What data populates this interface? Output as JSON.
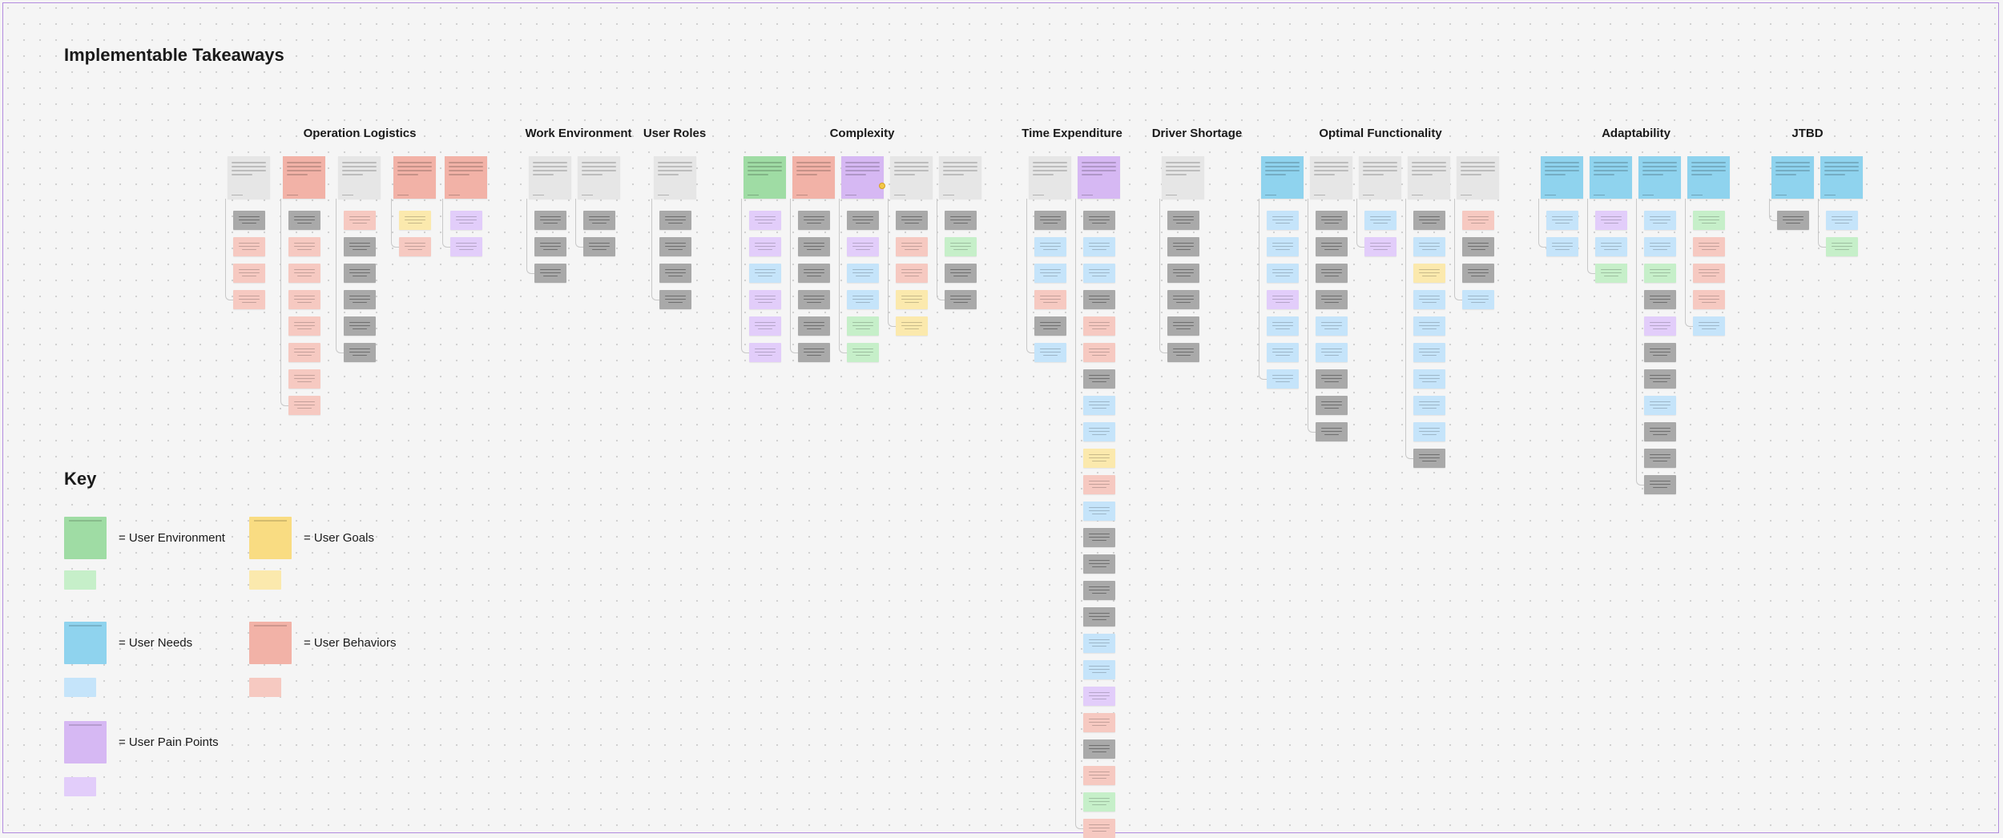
{
  "page": {
    "title": "Implementable Takeaways"
  },
  "categories": [
    {
      "label": "Operation Logistics",
      "x": 449
    },
    {
      "label": "Work Environment",
      "x": 722
    },
    {
      "label": "User Roles",
      "x": 842
    },
    {
      "label": "Complexity",
      "x": 1076
    },
    {
      "label": "Time Expenditure",
      "x": 1338
    },
    {
      "label": "Driver Shortage",
      "x": 1494
    },
    {
      "label": "Optimal Functionality",
      "x": 1723
    },
    {
      "label": "Adaptability",
      "x": 2042
    },
    {
      "label": "JTBD",
      "x": 2256
    }
  ],
  "key": {
    "title": "Key",
    "items": [
      {
        "label": "= User Environment",
        "color": "#9fdca4",
        "light": "#c6efc9"
      },
      {
        "label": "= User Goals",
        "color": "#f9dc82",
        "light": "#fbe9ad"
      },
      {
        "label": "= User Needs",
        "color": "#8fd3ee",
        "light": "#c5e4fa"
      },
      {
        "label": "= User Behaviors",
        "color": "#f2b2a7",
        "light": "#f6c9c1"
      },
      {
        "label": "= User Pain Points",
        "color": "#d6b8f3",
        "light": "#e2cdfa"
      }
    ]
  },
  "colors": {
    "grey": "#e6e6e6",
    "dark": "#a9a9a9",
    "red": "#f2b2a7",
    "redLight": "#f6c9c1",
    "green": "#9fdca4",
    "greenLight": "#c6efc9",
    "blue": "#8fd3ee",
    "blueLight": "#c5e4fa",
    "purple": "#d6b8f3",
    "purpleLight": "#e2cdfa",
    "yellow": "#f9dc82",
    "yellowLight": "#fbe9ad",
    "frame": "#b28adf"
  },
  "notes": [
    {
      "x": 284,
      "c": "grey",
      "cards": [
        "dark",
        "red",
        "red",
        "red"
      ]
    },
    {
      "x": 353,
      "c": "red",
      "cards": [
        "dark",
        "red",
        "red",
        "red",
        "red",
        "red",
        "red",
        "red"
      ]
    },
    {
      "x": 422,
      "c": "grey",
      "cards": [
        "red",
        "dark",
        "dark",
        "dark",
        "dark",
        "dark"
      ]
    },
    {
      "x": 491,
      "c": "red",
      "cards": [
        "yellow",
        "red"
      ]
    },
    {
      "x": 555,
      "c": "red",
      "cards": [
        "purple",
        "purple"
      ]
    },
    {
      "x": 660,
      "c": "grey",
      "cards": [
        "dark",
        "dark",
        "dark"
      ]
    },
    {
      "x": 721,
      "c": "grey",
      "cards": [
        "dark",
        "dark"
      ]
    },
    {
      "x": 816,
      "c": "grey",
      "cards": [
        "dark",
        "dark",
        "dark",
        "dark"
      ]
    },
    {
      "x": 928,
      "c": "green",
      "cards": [
        "purple",
        "purple",
        "blue",
        "purple",
        "purple",
        "purple"
      ]
    },
    {
      "x": 989,
      "c": "red",
      "cards": [
        "dark",
        "dark",
        "dark",
        "dark",
        "dark",
        "dark"
      ]
    },
    {
      "x": 1050,
      "c": "purple",
      "cards": [
        "dark",
        "purple",
        "blue",
        "blue",
        "green",
        "green"
      ]
    },
    {
      "x": 1111,
      "c": "grey",
      "cards": [
        "dark",
        "red",
        "red",
        "yellow",
        "yellow"
      ]
    },
    {
      "x": 1172,
      "c": "grey",
      "cards": [
        "dark",
        "green",
        "dark",
        "dark"
      ]
    },
    {
      "x": 1284,
      "c": "grey",
      "cards": [
        "dark",
        "blue",
        "blue",
        "red",
        "dark",
        "blue"
      ]
    },
    {
      "x": 1345,
      "c": "purple",
      "cards": [
        "dark",
        "blue",
        "blue",
        "dark",
        "red",
        "red",
        "dark",
        "blue",
        "blue",
        "yellow",
        "red",
        "blue",
        "dark",
        "dark",
        "dark",
        "dark",
        "blue",
        "blue",
        "purple",
        "red",
        "dark",
        "red",
        "green",
        "red"
      ]
    },
    {
      "x": 1450,
      "c": "grey",
      "cards": [
        "dark",
        "dark",
        "dark",
        "dark",
        "dark",
        "dark"
      ]
    },
    {
      "x": 1574,
      "c": "blue",
      "cards": [
        "blue",
        "blue",
        "blue",
        "purple",
        "blue",
        "blue",
        "blue"
      ]
    },
    {
      "x": 1635,
      "c": "grey",
      "cards": [
        "dark",
        "dark",
        "dark",
        "dark",
        "blue",
        "blue",
        "dark",
        "dark",
        "dark"
      ]
    },
    {
      "x": 1696,
      "c": "grey",
      "cards": [
        "blue",
        "purple"
      ]
    },
    {
      "x": 1757,
      "c": "grey",
      "cards": [
        "dark",
        "blue",
        "yellow",
        "blue",
        "blue",
        "blue",
        "blue",
        "blue",
        "blue",
        "dark"
      ]
    },
    {
      "x": 1818,
      "c": "grey",
      "cards": [
        "red",
        "dark",
        "dark",
        "blue"
      ]
    },
    {
      "x": 1923,
      "c": "blue",
      "cards": [
        "blue",
        "blue"
      ]
    },
    {
      "x": 1984,
      "c": "blue",
      "cards": [
        "purple",
        "blue",
        "green"
      ]
    },
    {
      "x": 2045,
      "c": "blue",
      "cards": [
        "blue",
        "blue",
        "green",
        "dark",
        "purple",
        "dark",
        "dark",
        "blue",
        "dark",
        "dark",
        "dark"
      ]
    },
    {
      "x": 2106,
      "c": "blue",
      "cards": [
        "green",
        "red",
        "red",
        "red",
        "blue"
      ]
    },
    {
      "x": 2211,
      "c": "blue",
      "cards": [
        "dark"
      ]
    },
    {
      "x": 2272,
      "c": "blue",
      "cards": [
        "blue",
        "green"
      ]
    }
  ]
}
